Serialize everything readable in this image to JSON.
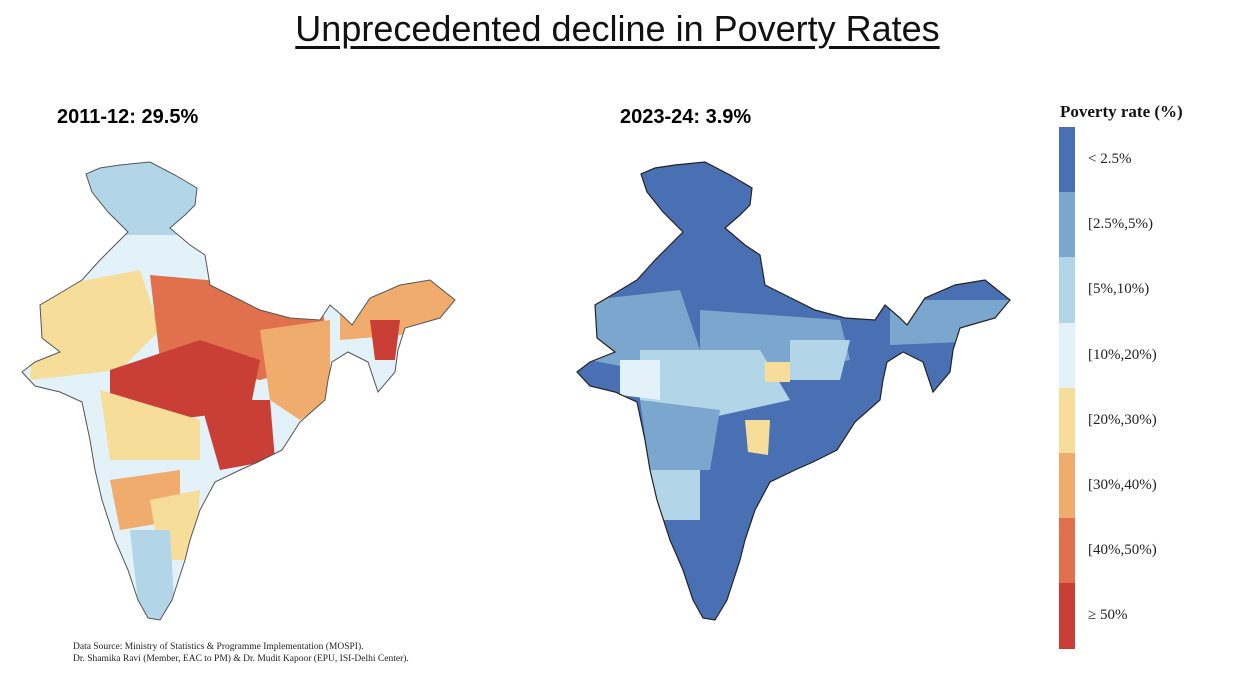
{
  "title": "Unprecedented decline in Poverty Rates",
  "maps": [
    {
      "label": "2011-12: 29.5%"
    },
    {
      "label": "2023-24: 3.9%"
    }
  ],
  "legend": {
    "title": "Poverty rate (%)",
    "items": [
      {
        "label": "< 2.5%",
        "color": "#4a70b4"
      },
      {
        "label": "[2.5%,5%)",
        "color": "#7ba7cf"
      },
      {
        "label": "[5%,10%)",
        "color": "#b2d6e8"
      },
      {
        "label": "[10%,20%)",
        "color": "#e3f1f8"
      },
      {
        "label": "[20%,30%)",
        "color": "#f6de9a"
      },
      {
        "label": "[30%,40%)",
        "color": "#efac6c"
      },
      {
        "label": "[40%,50%)",
        "color": "#e1704c"
      },
      {
        "label": "≥ 50%",
        "color": "#c93f36"
      }
    ]
  },
  "source": {
    "line1": "Data Source: Ministry of Statistics & Programme Implementation (MOSPI).",
    "line2": "Dr. Shamika Ravi (Member, EAC to PM) & Dr. Mudit Kapoor (EPU, ISI-Delhi Center)."
  }
}
